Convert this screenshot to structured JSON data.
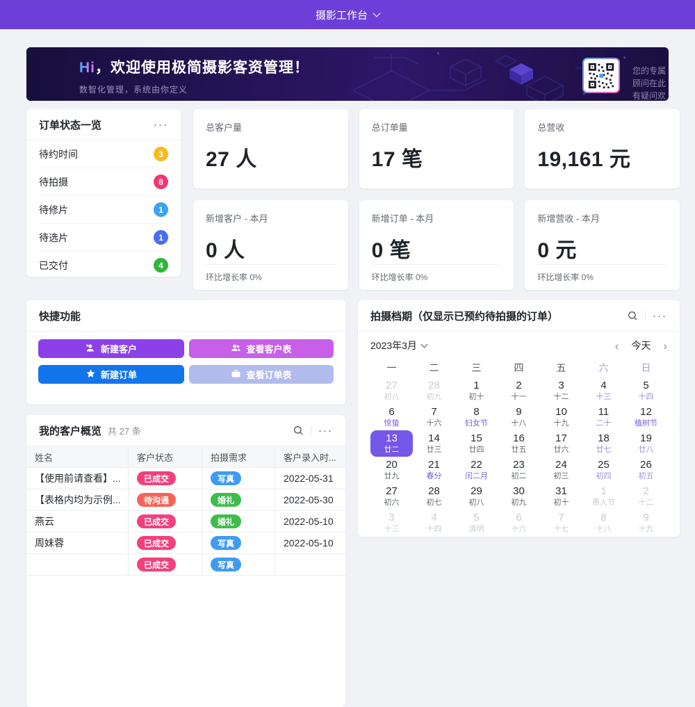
{
  "colors": {
    "accent": "#6c3fd8",
    "calendar_selected": "#7557e9"
  },
  "header": {
    "title": "摄影工作台"
  },
  "banner": {
    "title_hi": "Hi",
    "title_rest": "，欢迎使用极简摄影客资管理！",
    "subtitle": "数智化管理，系统由你定义",
    "qr_caption_line1": "您的专属顾问在此",
    "qr_caption_line2": "有疑问欢迎来撩~"
  },
  "ui": {
    "more": "···"
  },
  "order_status": {
    "title": "订单状态一览",
    "items": [
      {
        "label": "待约时间",
        "count": "3",
        "color": "#f7ba1e"
      },
      {
        "label": "待拍摄",
        "count": "8",
        "color": "#f23672"
      },
      {
        "label": "待修片",
        "count": "1",
        "color": "#3ba2f6"
      },
      {
        "label": "待选片",
        "count": "1",
        "color": "#4a6ef2"
      },
      {
        "label": "已交付",
        "count": "4",
        "color": "#2fb53b"
      }
    ]
  },
  "stats": {
    "row1": [
      {
        "label": "总客户量",
        "value": "27 人"
      },
      {
        "label": "总订单量",
        "value": "17 笔"
      },
      {
        "label": "总营收",
        "value": "19,161 元"
      }
    ],
    "row2": [
      {
        "label": "新增客户 - 本月",
        "value": "0 人",
        "footer": "环比增长率 0%"
      },
      {
        "label": "新增订单 - 本月",
        "value": "0 笔",
        "footer": "环比增长率 0%"
      },
      {
        "label": "新增营收 - 本月",
        "value": "0 元",
        "footer": "环比增长率 0%"
      }
    ]
  },
  "quick_actions": {
    "title": "快捷功能",
    "buttons": [
      {
        "name": "new-customer-button",
        "icon": "person-add-icon",
        "label": "新建客户",
        "bg": "#8b40e8"
      },
      {
        "name": "view-customers-button",
        "icon": "people-icon",
        "label": "查看客户表",
        "bg": "#c75fe8"
      },
      {
        "name": "new-order-button",
        "icon": "star-icon",
        "label": "新建订单",
        "bg": "#1375ec"
      },
      {
        "name": "view-orders-button",
        "icon": "briefcase-icon",
        "label": "查看订单表",
        "bg": "#b2bcec"
      }
    ]
  },
  "schedule": {
    "title": "拍摄档期（仅显示已预约待拍摄的订单）",
    "month_label": "2023年3月",
    "prev": "‹",
    "next": "›",
    "today": "今天",
    "weekdays": [
      {
        "label": "一",
        "weekend": false
      },
      {
        "label": "二",
        "weekend": false
      },
      {
        "label": "三",
        "weekend": false
      },
      {
        "label": "四",
        "weekend": false
      },
      {
        "label": "五",
        "weekend": false
      },
      {
        "label": "六",
        "weekend": true
      },
      {
        "label": "日",
        "weekend": true
      }
    ],
    "days": [
      {
        "d": "27",
        "l": "初八",
        "t": "dim"
      },
      {
        "d": "28",
        "l": "初九",
        "t": "dim"
      },
      {
        "d": "1",
        "l": "初十",
        "t": "n"
      },
      {
        "d": "2",
        "l": "十一",
        "t": "n"
      },
      {
        "d": "3",
        "l": "十二",
        "t": "n"
      },
      {
        "d": "4",
        "l": "十三",
        "t": "w"
      },
      {
        "d": "5",
        "l": "十四",
        "t": "w"
      },
      {
        "d": "6",
        "l": "惊蛰",
        "t": "f"
      },
      {
        "d": "7",
        "l": "十六",
        "t": "n"
      },
      {
        "d": "8",
        "l": "妇女节",
        "t": "f"
      },
      {
        "d": "9",
        "l": "十八",
        "t": "n"
      },
      {
        "d": "10",
        "l": "十九",
        "t": "n"
      },
      {
        "d": "11",
        "l": "二十",
        "t": "w"
      },
      {
        "d": "12",
        "l": "植树节",
        "t": "fw"
      },
      {
        "d": "13",
        "l": "廿二",
        "t": "sel"
      },
      {
        "d": "14",
        "l": "廿三",
        "t": "n"
      },
      {
        "d": "15",
        "l": "廿四",
        "t": "n"
      },
      {
        "d": "16",
        "l": "廿五",
        "t": "n"
      },
      {
        "d": "17",
        "l": "廿六",
        "t": "n"
      },
      {
        "d": "18",
        "l": "廿七",
        "t": "w"
      },
      {
        "d": "19",
        "l": "廿八",
        "t": "w"
      },
      {
        "d": "20",
        "l": "廿九",
        "t": "n"
      },
      {
        "d": "21",
        "l": "春分",
        "t": "f"
      },
      {
        "d": "22",
        "l": "闰二月",
        "t": "f"
      },
      {
        "d": "23",
        "l": "初二",
        "t": "n"
      },
      {
        "d": "24",
        "l": "初三",
        "t": "n"
      },
      {
        "d": "25",
        "l": "初四",
        "t": "w"
      },
      {
        "d": "26",
        "l": "初五",
        "t": "w"
      },
      {
        "d": "27",
        "l": "初六",
        "t": "n"
      },
      {
        "d": "28",
        "l": "初七",
        "t": "n"
      },
      {
        "d": "29",
        "l": "初八",
        "t": "n"
      },
      {
        "d": "30",
        "l": "初九",
        "t": "n"
      },
      {
        "d": "31",
        "l": "初十",
        "t": "n"
      },
      {
        "d": "1",
        "l": "愚人节",
        "t": "dim"
      },
      {
        "d": "2",
        "l": "十二",
        "t": "dim"
      },
      {
        "d": "3",
        "l": "十三",
        "t": "dim"
      },
      {
        "d": "4",
        "l": "十四",
        "t": "dim"
      },
      {
        "d": "5",
        "l": "清明",
        "t": "dim"
      },
      {
        "d": "6",
        "l": "十六",
        "t": "dim"
      },
      {
        "d": "7",
        "l": "十七",
        "t": "dim"
      },
      {
        "d": "8",
        "l": "十八",
        "t": "dim"
      },
      {
        "d": "9",
        "l": "十九",
        "t": "dim"
      }
    ]
  },
  "customers": {
    "title": "我的客户概览",
    "count_label": "共 27 条",
    "columns": [
      "姓名",
      "客户状态",
      "拍摄需求",
      "客户录入时..."
    ],
    "rows": [
      {
        "name": "【使用前请查看】...",
        "status": "已成交",
        "status_color": "#f3407c",
        "need": "写真",
        "need_color": "#3f9bf2",
        "date": "2022-05-31"
      },
      {
        "name": "【表格内均为示例...",
        "status": "待沟通",
        "status_color": "#f56458",
        "need": "婚礼",
        "need_color": "#3ebd4b",
        "date": "2022-05-30"
      },
      {
        "name": "燕云",
        "status": "已成交",
        "status_color": "#f3407c",
        "need": "婚礼",
        "need_color": "#3ebd4b",
        "date": "2022-05-10"
      },
      {
        "name": "周妹蓉",
        "status": "已成交",
        "status_color": "#f3407c",
        "need": "写真",
        "need_color": "#3f9bf2",
        "date": "2022-05-10"
      },
      {
        "name": "",
        "status": "已成交",
        "status_color": "#f3407c",
        "need": "写真",
        "need_color": "#3f9bf2",
        "date": ""
      }
    ]
  }
}
